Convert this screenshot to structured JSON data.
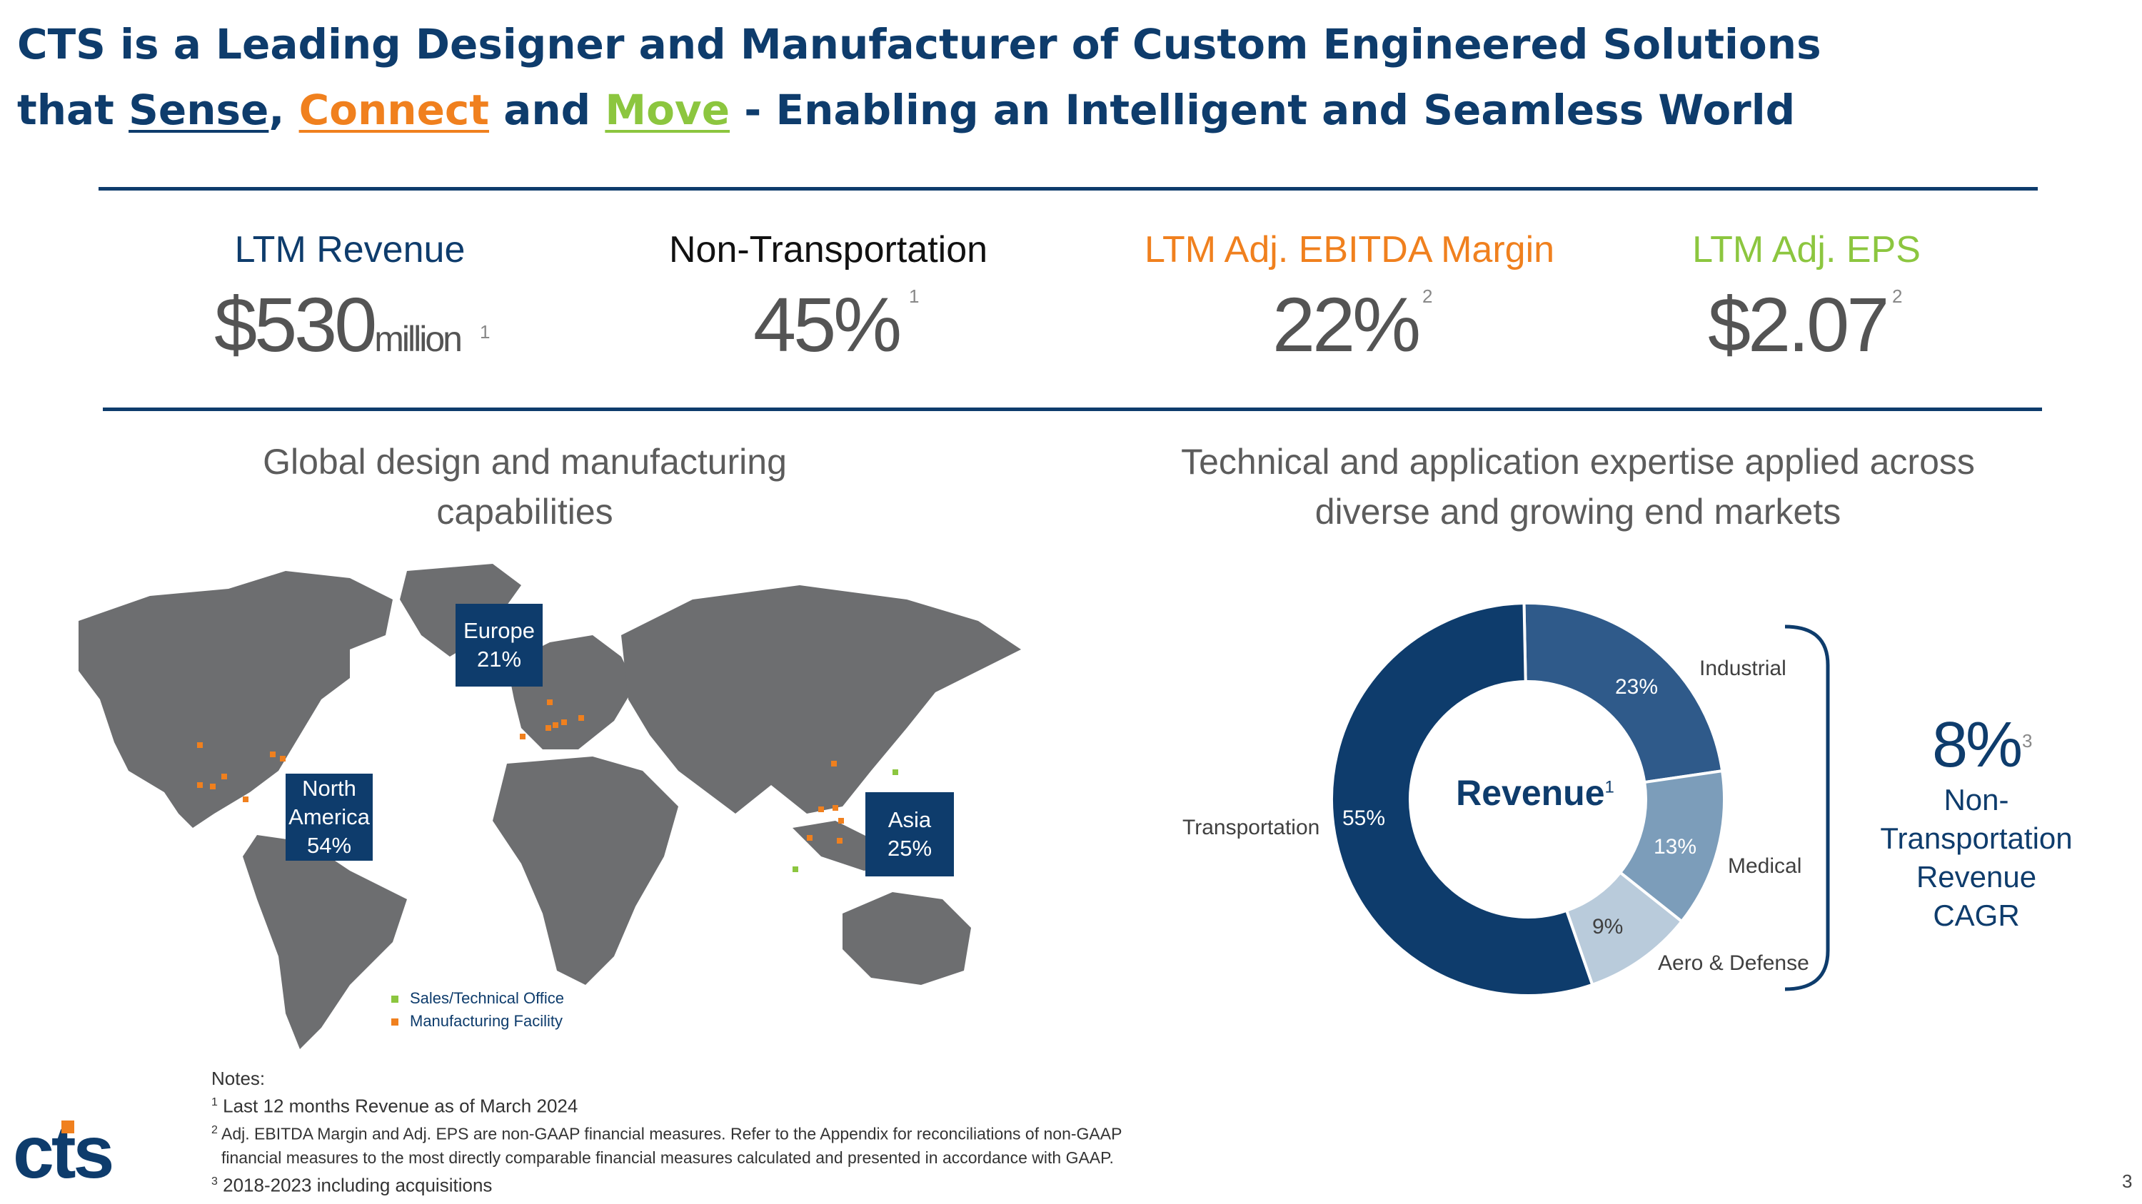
{
  "title": {
    "line1": "CTS is a Leading Designer and Manufacturer of Custom Engineered Solutions",
    "line2_prefix": "that ",
    "sense": "Sense",
    "comma": ", ",
    "connect": "Connect",
    "and": " and ",
    "move": "Move",
    "line2_suffix": " - Enabling an Intelligent and Seamless World"
  },
  "kpis": {
    "revenue": {
      "label": "LTM Revenue",
      "value": "$530",
      "unit": "million",
      "sup": "1"
    },
    "non_transport": {
      "label": "Non-Transportation",
      "value": "45%",
      "sup": "1"
    },
    "ebitda": {
      "label": "LTM Adj. EBITDA Margin",
      "value": "22%",
      "sup": "2"
    },
    "eps": {
      "label": "LTM Adj. EPS",
      "value": "$2.07",
      "sup": "2"
    }
  },
  "left_section": {
    "title_line1": "Global design and manufacturing",
    "title_line2": "capabilities",
    "regions": {
      "europe": {
        "name": "Europe",
        "pct": "21%"
      },
      "north_america": {
        "name1": "North",
        "name2": "America",
        "pct": "54%"
      },
      "asia": {
        "name": "Asia",
        "pct": "25%"
      }
    },
    "legend": {
      "sales": "Sales/Technical Office",
      "manufacturing": "Manufacturing Facility"
    }
  },
  "right_section": {
    "title_line1": "Technical and application expertise applied across",
    "title_line2": "diverse and growing end markets",
    "center_label": "Revenue",
    "center_sup": "1",
    "segments": [
      {
        "name": "Transportation",
        "pct": "55%",
        "value": 55
      },
      {
        "name": "Industrial",
        "pct": "23%",
        "value": 23
      },
      {
        "name": "Medical",
        "pct": "13%",
        "value": 13
      },
      {
        "name": "Aero & Defense",
        "pct": "9%",
        "value": 9
      }
    ],
    "cagr": {
      "value": "8%",
      "sup": "3",
      "line1": "Non-",
      "line2": "Transportation",
      "line3": "Revenue CAGR"
    }
  },
  "notes": {
    "heading": "Notes:",
    "n1_sup": "1",
    "n1": "Last 12 months Revenue as of March 2024",
    "n2_sup": "2",
    "n2a": "Adj. EBITDA Margin and Adj. EPS are non-GAAP financial measures. Refer to the Appendix for reconciliations of non-GAAP",
    "n2b": "financial measures to the most directly comparable financial measures calculated and presented in accordance with GAAP.",
    "n3_sup": "3",
    "n3": "2018-2023 including acquisitions"
  },
  "logo": {
    "text": "cts"
  },
  "page_number": "3",
  "colors": {
    "navy": "#0e3c6c",
    "orange": "#f0801e",
    "green": "#8cc63f",
    "map_gray": "#6d6e70",
    "seg_transport": "#0e3c6c",
    "seg_industrial": "#2f5a8a",
    "seg_medical": "#7c9dba",
    "seg_aero": "#b9cbdb"
  }
}
